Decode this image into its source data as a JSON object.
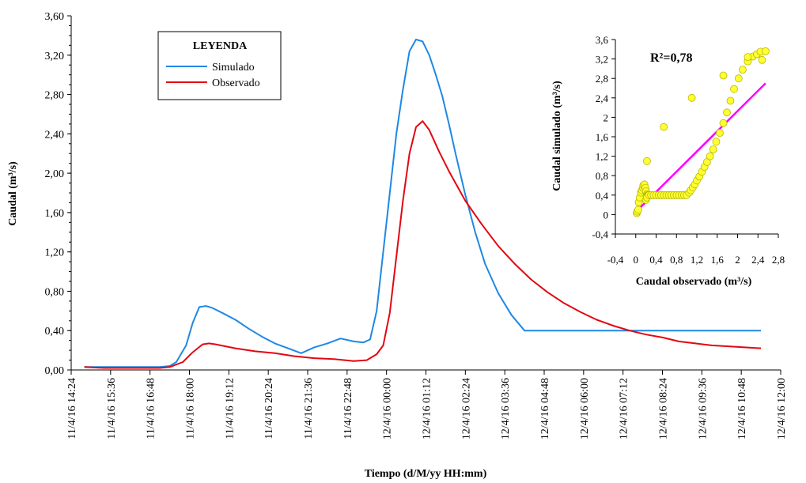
{
  "chart_data": [
    {
      "type": "line",
      "xlabel": "Tiempo (d/M/yy HH:mm)",
      "ylabel": "Caudal (m³/s)",
      "ylim": [
        0,
        3.6
      ],
      "yticks": [
        "0,00",
        "0,40",
        "0,80",
        "1,20",
        "1,60",
        "2,00",
        "2,40",
        "2,80",
        "3,20",
        "3,60"
      ],
      "yticks_values": [
        0,
        0.4,
        0.8,
        1.2,
        1.6,
        2.0,
        2.4,
        2.8,
        3.2,
        3.6
      ],
      "xticks": [
        "11/4/16 14:24",
        "11/4/16 15:36",
        "11/4/16 16:48",
        "11/4/16 18:00",
        "11/4/16 19:12",
        "11/4/16 20:24",
        "11/4/16 21:36",
        "11/4/16 22:48",
        "12/4/16 00:00",
        "12/4/16 01:12",
        "12/4/16 02:24",
        "12/4/16 03:36",
        "12/4/16 04:48",
        "12/4/16 06:00",
        "12/4/16 07:12",
        "12/4/16 08:24",
        "12/4/16 09:36",
        "12/4/16 10:48",
        "12/4/16 12:00"
      ],
      "x_unit": "hours since 11/4/16 14:24",
      "xlim": [
        0,
        21.6
      ],
      "grid": false,
      "legend": {
        "title": "LEYENDA",
        "position": "upper-left"
      },
      "series": [
        {
          "name": "Simulado",
          "color": "#1e88e5",
          "x": [
            0.4,
            1.0,
            2.0,
            2.7,
            3.0,
            3.2,
            3.5,
            3.7,
            3.9,
            4.1,
            4.3,
            4.6,
            5.0,
            5.4,
            5.8,
            6.2,
            6.6,
            7.0,
            7.4,
            7.8,
            8.2,
            8.6,
            8.9,
            9.1,
            9.3,
            9.5,
            9.7,
            9.9,
            10.1,
            10.3,
            10.5,
            10.7,
            10.9,
            11.1,
            11.3,
            11.5,
            11.7,
            12.0,
            12.3,
            12.6,
            13.0,
            13.4,
            13.8,
            14.2,
            14.4,
            14.6,
            15.0,
            16.0,
            17.0,
            18.0,
            19.0,
            20.0,
            21.0
          ],
          "y": [
            0.03,
            0.03,
            0.03,
            0.03,
            0.04,
            0.08,
            0.25,
            0.48,
            0.64,
            0.65,
            0.63,
            0.58,
            0.51,
            0.42,
            0.34,
            0.27,
            0.22,
            0.17,
            0.23,
            0.27,
            0.32,
            0.29,
            0.28,
            0.31,
            0.6,
            1.2,
            1.8,
            2.4,
            2.85,
            3.24,
            3.36,
            3.34,
            3.2,
            3.0,
            2.78,
            2.5,
            2.2,
            1.78,
            1.4,
            1.08,
            0.78,
            0.56,
            0.4,
            0.4,
            0.4,
            0.4,
            0.4,
            0.4,
            0.4,
            0.4,
            0.4,
            0.4,
            0.4
          ]
        },
        {
          "name": "Observado",
          "color": "#e30613",
          "x": [
            0.4,
            1.0,
            2.0,
            2.7,
            3.0,
            3.4,
            3.7,
            4.0,
            4.2,
            4.4,
            4.7,
            5.0,
            5.6,
            6.2,
            6.8,
            7.4,
            8.0,
            8.6,
            9.0,
            9.3,
            9.5,
            9.7,
            9.9,
            10.1,
            10.3,
            10.5,
            10.7,
            10.9,
            11.2,
            11.5,
            12.0,
            12.5,
            13.0,
            13.5,
            14.0,
            14.5,
            15.0,
            15.5,
            16.0,
            16.5,
            17.0,
            17.5,
            18.0,
            18.5,
            19.0,
            19.5,
            20.0,
            20.5,
            21.0
          ],
          "y": [
            0.03,
            0.02,
            0.02,
            0.02,
            0.03,
            0.08,
            0.18,
            0.26,
            0.27,
            0.26,
            0.24,
            0.22,
            0.19,
            0.17,
            0.14,
            0.12,
            0.11,
            0.09,
            0.1,
            0.16,
            0.25,
            0.58,
            1.15,
            1.72,
            2.2,
            2.47,
            2.53,
            2.44,
            2.22,
            2.02,
            1.72,
            1.48,
            1.26,
            1.08,
            0.92,
            0.79,
            0.68,
            0.59,
            0.51,
            0.45,
            0.4,
            0.36,
            0.33,
            0.29,
            0.27,
            0.25,
            0.24,
            0.23,
            0.22
          ]
        }
      ]
    },
    {
      "type": "scatter",
      "annotation": "R²=0,78",
      "xlabel": "Caudal observado (m³/s)",
      "ylabel": "Caudal simulado (m³/s)",
      "xlim": [
        -0.4,
        2.8
      ],
      "ylim": [
        -0.4,
        3.6
      ],
      "xticks": [
        "-0,4",
        "0",
        "0,4",
        "0,8",
        "1,2",
        "1,6",
        "2",
        "2,4",
        "2,8"
      ],
      "xticks_values": [
        -0.4,
        0,
        0.4,
        0.8,
        1.2,
        1.6,
        2.0,
        2.4,
        2.8
      ],
      "yticks": [
        "-0,4",
        "0",
        "0,4",
        "0,8",
        "1,2",
        "1,6",
        "2",
        "2,4",
        "2,8",
        "3,2",
        "3,6"
      ],
      "yticks_values": [
        -0.4,
        0,
        0.4,
        0.8,
        1.2,
        1.6,
        2.0,
        2.4,
        2.8,
        3.2,
        3.6
      ],
      "grid": false,
      "point_color": "#ffff33",
      "trendline": {
        "color": "#ff00ff",
        "x": [
          0,
          2.55
        ],
        "y": [
          0.05,
          2.7
        ]
      },
      "points": {
        "x": [
          0.02,
          0.03,
          0.05,
          0.06,
          0.08,
          0.1,
          0.12,
          0.14,
          0.15,
          0.17,
          0.19,
          0.2,
          0.22,
          0.23,
          0.24,
          0.25,
          0.26,
          0.27,
          0.2,
          0.22,
          0.26,
          0.3,
          0.35,
          0.4,
          0.45,
          0.5,
          0.55,
          0.6,
          0.65,
          0.7,
          0.75,
          0.8,
          0.85,
          0.9,
          0.95,
          1.0,
          1.05,
          1.08,
          1.12,
          1.16,
          1.2,
          1.25,
          1.3,
          1.35,
          1.4,
          1.46,
          1.52,
          1.58,
          1.65,
          1.72,
          1.79,
          1.86,
          1.93,
          2.02,
          2.1,
          2.2,
          2.3,
          2.38,
          2.45,
          2.55,
          0.22,
          0.55,
          1.1,
          1.72,
          2.2,
          2.48
        ],
        "y": [
          0.03,
          0.06,
          0.1,
          0.25,
          0.35,
          0.45,
          0.5,
          0.55,
          0.6,
          0.62,
          0.55,
          0.48,
          0.42,
          0.4,
          0.4,
          0.4,
          0.4,
          0.4,
          0.3,
          0.35,
          0.4,
          0.4,
          0.4,
          0.4,
          0.4,
          0.4,
          0.4,
          0.4,
          0.4,
          0.4,
          0.4,
          0.4,
          0.4,
          0.4,
          0.4,
          0.4,
          0.45,
          0.5,
          0.56,
          0.62,
          0.7,
          0.78,
          0.88,
          0.98,
          1.08,
          1.2,
          1.34,
          1.5,
          1.68,
          1.88,
          2.1,
          2.34,
          2.58,
          2.8,
          2.98,
          3.15,
          3.25,
          3.3,
          3.35,
          3.36,
          1.1,
          1.8,
          2.4,
          2.86,
          3.24,
          3.18
        ]
      }
    }
  ]
}
